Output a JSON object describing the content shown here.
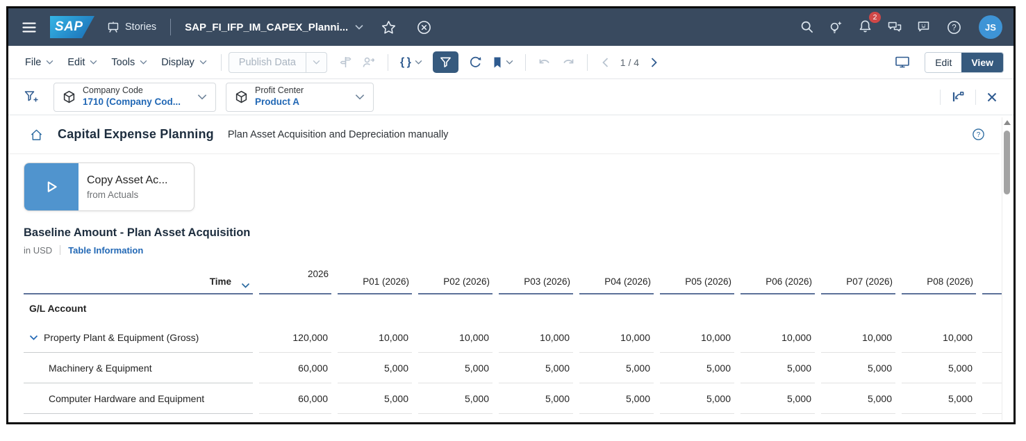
{
  "colors": {
    "shell-bg": "#394a5f",
    "accent-blue": "#2e5a8f",
    "active-fill": "#365a7e",
    "link-blue": "#2268b5",
    "badge-red": "#d04848",
    "avatar-blue": "#3e94d6",
    "header-underline": "#5c7199",
    "play-blue": "#5094ce"
  },
  "shell": {
    "brand": "SAP",
    "section_label": "Stories",
    "story_title": "SAP_FI_IFP_IM_CAPEX_Planni...",
    "notification_count": "2",
    "avatar_initials": "JS"
  },
  "toolbar": {
    "menus": [
      {
        "label": "File"
      },
      {
        "label": "Edit"
      },
      {
        "label": "Tools"
      },
      {
        "label": "Display"
      }
    ],
    "publish_button": "Publish Data",
    "page_indicator": "1 / 4",
    "mode_edit": "Edit",
    "mode_view": "View"
  },
  "filter_bar": {
    "filters": [
      {
        "label": "Company Code",
        "value": "1710 (Company Cod..."
      },
      {
        "label": "Profit Center",
        "value": "Product A"
      }
    ]
  },
  "page": {
    "title": "Capital Expense Planning",
    "subtitle": "Plan Asset Acquisition and Depreciation manually",
    "copy_button": {
      "title": "Copy Asset Ac...",
      "subtitle": "from Actuals"
    }
  },
  "table": {
    "title": "Baseline Amount - Plan Asset Acquisition",
    "unit": "in USD",
    "info_link": "Table Information",
    "time_label": "Time",
    "year_label": "2026",
    "period_columns": [
      "P01 (2026)",
      "P02 (2026)",
      "P03 (2026)",
      "P04 (2026)",
      "P05 (2026)",
      "P06 (2026)",
      "P07 (2026)",
      "P08 (2026)"
    ],
    "dimension_label": "G/L Account",
    "rows": [
      {
        "name": "Property Plant & Equipment (Gross)",
        "expanded": true,
        "indent": false,
        "year_total": "120,000",
        "period_values": [
          "10,000",
          "10,000",
          "10,000",
          "10,000",
          "10,000",
          "10,000",
          "10,000",
          "10,000"
        ]
      },
      {
        "name": "Machinery & Equipment",
        "expanded": false,
        "indent": true,
        "year_total": "60,000",
        "period_values": [
          "5,000",
          "5,000",
          "5,000",
          "5,000",
          "5,000",
          "5,000",
          "5,000",
          "5,000"
        ]
      },
      {
        "name": "Computer Hardware and Equipment",
        "expanded": false,
        "indent": true,
        "year_total": "60,000",
        "period_values": [
          "5,000",
          "5,000",
          "5,000",
          "5,000",
          "5,000",
          "5,000",
          "5,000",
          "5,000"
        ]
      }
    ]
  }
}
